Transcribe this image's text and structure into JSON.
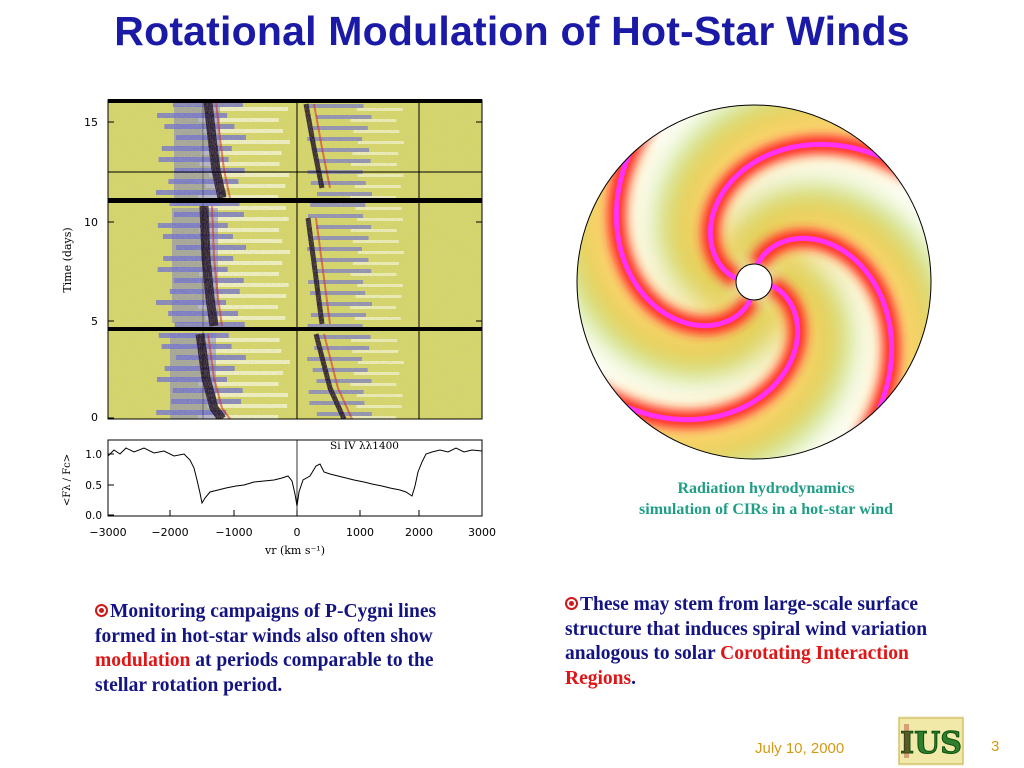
{
  "slide": {
    "title": "Rotational Modulation of Hot-Star Winds",
    "footer_date": "July 10, 2000",
    "page_number": "3"
  },
  "figure_left": {
    "top_panel": {
      "ylabel": "Time (days)",
      "yticks": [
        "15",
        "10",
        "5",
        "0"
      ]
    },
    "bottom_panel": {
      "ylabel": "<Fλ / Fc>",
      "yticks": [
        "1.0",
        "0.5",
        "0.0"
      ],
      "line_label": "Si IV λλ1400",
      "xlabel": "vr (km s⁻¹)",
      "xticks": [
        "−3000",
        "−2000",
        "−1000",
        "0",
        "1000",
        "2000",
        "3000"
      ]
    },
    "colors": {
      "background": "#d6d66a",
      "absorption": "#6a6ad8",
      "strong": "#1a0a22",
      "emission": "#f6f6d8"
    }
  },
  "figure_right": {
    "caption_line1": "Radiation hydrodynamics",
    "caption_line2": "simulation of CIRs in a hot-star wind",
    "colors": {
      "arm": "#ff2020",
      "arm_core": "#ff30ff",
      "halo": "#ffb000",
      "green": "#a0f0a0"
    }
  },
  "bullets": {
    "left": {
      "text_before": "Monitoring campaigns of P-Cygni lines formed in hot-star winds also often show ",
      "highlight": "modulation",
      "text_after": " at periods comparable to the stellar rotation period."
    },
    "right": {
      "text_before": "These may stem from large-scale surface structure that  induces spiral wind variation analogous to solar ",
      "highlight": "Corotating Interaction Regions",
      "text_after": "."
    }
  },
  "logo": {
    "text": "IUS"
  }
}
